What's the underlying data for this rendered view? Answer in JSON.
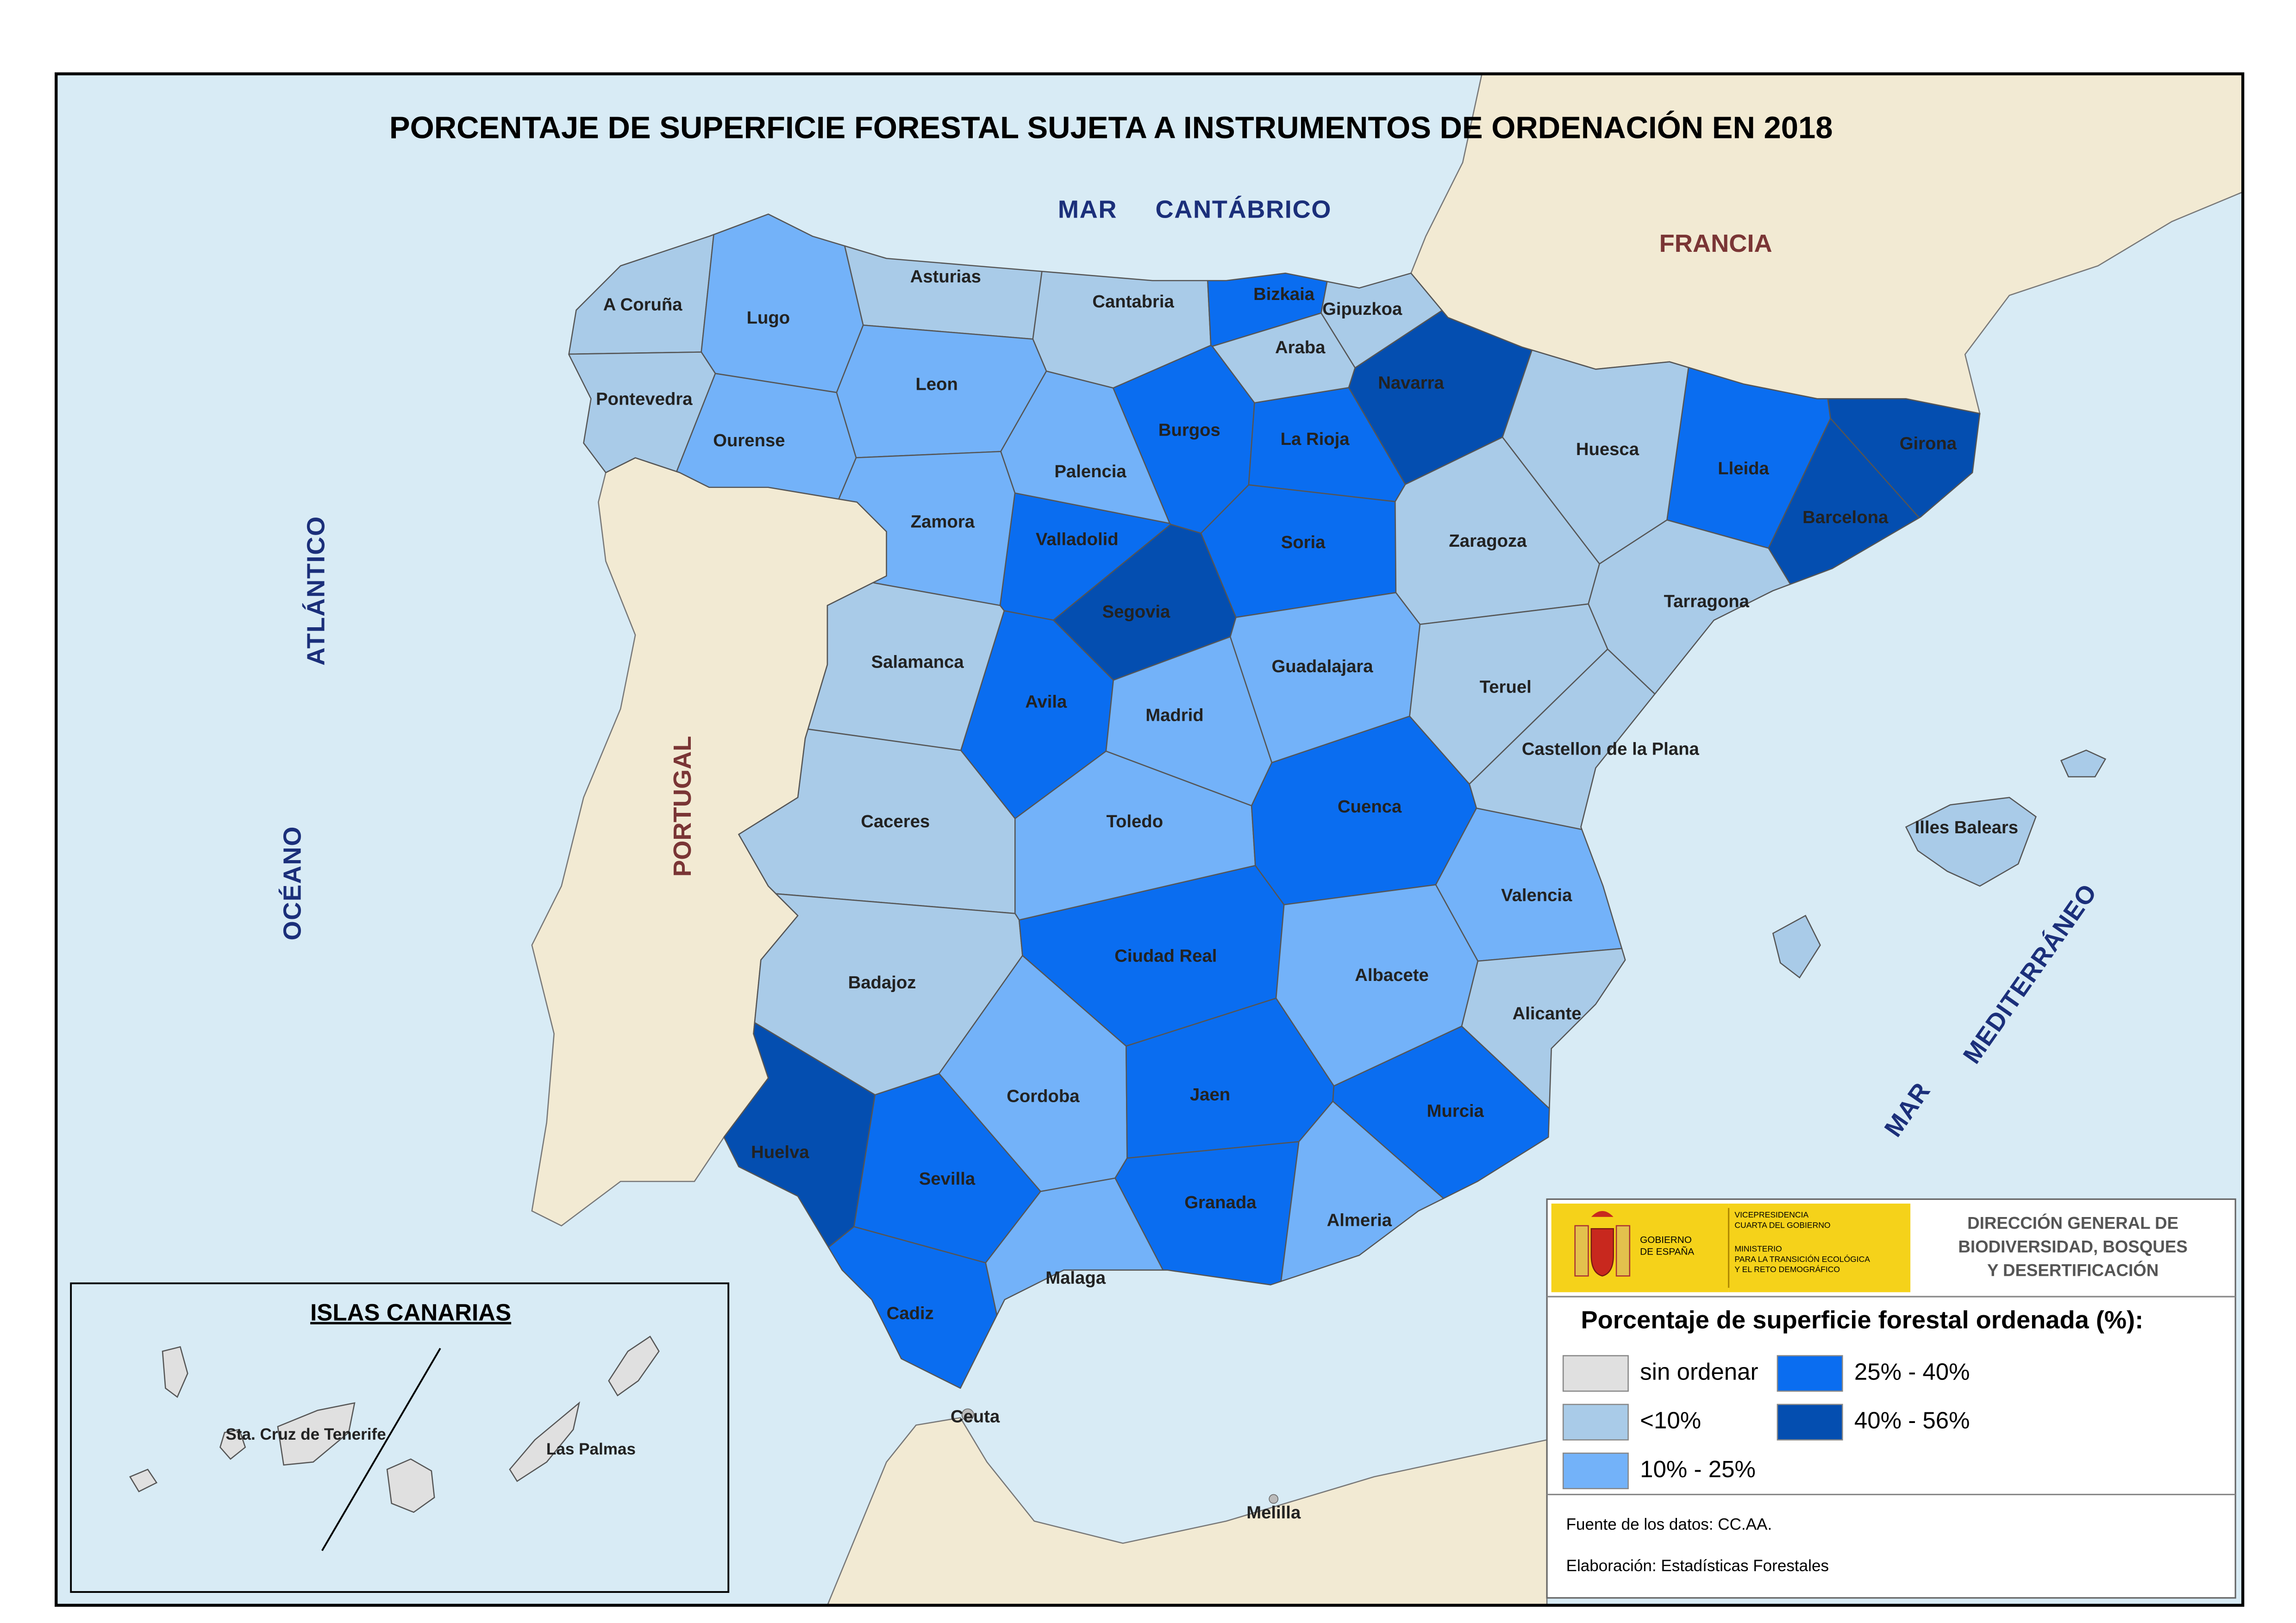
{
  "title": "PORCENTAJE DE SUPERFICIE FORESTAL SUJETA A INSTRUMENTOS DE ORDENACIÓN EN 2018",
  "labels": {
    "mar": "MAR",
    "cantabrico": "CANTÁBRICO",
    "francia": "FRANCIA",
    "portugal": "PORTUGAL",
    "oceano": "OCÉANO",
    "atlantico": "ATLÁNTICO",
    "mar_med": "MAR",
    "mediterraneo": "MEDITERRÁNEO",
    "ceuta": "Ceuta",
    "melilla": "Melilla"
  },
  "legend": {
    "title": "Porcentaje de superficie forestal ordenada (%):",
    "classes": [
      {
        "label": "sin ordenar",
        "color": "#e0e0e0"
      },
      {
        "label": "<10%",
        "color": "#a9cbe8"
      },
      {
        "label": "10% - 25%",
        "color": "#73b2f9"
      },
      {
        "label": "25% - 40%",
        "color": "#0a6df0"
      },
      {
        "label": "40% - 56%",
        "color": "#044eb0"
      }
    ]
  },
  "provinces": [
    {
      "name": "A Coruña",
      "class": 1
    },
    {
      "name": "Lugo",
      "class": 2
    },
    {
      "name": "Asturias",
      "class": 1
    },
    {
      "name": "Cantabria",
      "class": 1
    },
    {
      "name": "Bizkaia",
      "class": 3
    },
    {
      "name": "Gipuzkoa",
      "class": 1
    },
    {
      "name": "Araba",
      "class": 1
    },
    {
      "name": "Navarra",
      "class": 4
    },
    {
      "name": "Pontevedra",
      "class": 1
    },
    {
      "name": "Ourense",
      "class": 2
    },
    {
      "name": "Leon",
      "class": 2
    },
    {
      "name": "Palencia",
      "class": 2
    },
    {
      "name": "Burgos",
      "class": 3
    },
    {
      "name": "La Rioja",
      "class": 3
    },
    {
      "name": "Huesca",
      "class": 1
    },
    {
      "name": "Lleida",
      "class": 3
    },
    {
      "name": "Girona",
      "class": 4
    },
    {
      "name": "Barcelona",
      "class": 4
    },
    {
      "name": "Zamora",
      "class": 2
    },
    {
      "name": "Valladolid",
      "class": 3
    },
    {
      "name": "Soria",
      "class": 3
    },
    {
      "name": "Zaragoza",
      "class": 1
    },
    {
      "name": "Tarragona",
      "class": 1
    },
    {
      "name": "Segovia",
      "class": 4
    },
    {
      "name": "Salamanca",
      "class": 1
    },
    {
      "name": "Avila",
      "class": 3
    },
    {
      "name": "Madrid",
      "class": 2
    },
    {
      "name": "Guadalajara",
      "class": 2
    },
    {
      "name": "Teruel",
      "class": 1
    },
    {
      "name": "Castellon de la Plana",
      "class": 1
    },
    {
      "name": "Caceres",
      "class": 1
    },
    {
      "name": "Toledo",
      "class": 2
    },
    {
      "name": "Cuenca",
      "class": 3
    },
    {
      "name": "Valencia",
      "class": 2
    },
    {
      "name": "Badajoz",
      "class": 1
    },
    {
      "name": "Ciudad Real",
      "class": 3
    },
    {
      "name": "Albacete",
      "class": 2
    },
    {
      "name": "Alicante",
      "class": 1
    },
    {
      "name": "Cordoba",
      "class": 2
    },
    {
      "name": "Jaen",
      "class": 3
    },
    {
      "name": "Murcia",
      "class": 3
    },
    {
      "name": "Huelva",
      "class": 4
    },
    {
      "name": "Sevilla",
      "class": 3
    },
    {
      "name": "Granada",
      "class": 3
    },
    {
      "name": "Almeria",
      "class": 2
    },
    {
      "name": "Malaga",
      "class": 2
    },
    {
      "name": "Cadiz",
      "class": 3
    },
    {
      "name": "Illes Balears",
      "class": 1
    }
  ],
  "canarias": {
    "title": "ISLAS CANARIAS",
    "provinces": [
      {
        "name": "Sta. Cruz de Tenerife",
        "class": 0
      },
      {
        "name": "Las Palmas",
        "class": 0
      }
    ]
  },
  "logo": {
    "gobierno": [
      "GOBIERNO",
      "DE ESPAÑA"
    ],
    "vice": [
      "VICEPRESIDENCIA",
      "CUARTA DEL GOBIERNO"
    ],
    "ministerio": [
      "MINISTERIO",
      "PARA LA TRANSICIÓN ECOLÓGICA",
      "Y EL RETO DEMOGRÁFICO"
    ],
    "direccion": [
      "DIRECCIÓN GENERAL DE",
      "BIODIVERSIDAD, BOSQUES",
      "Y DESERTIFICACIÓN"
    ]
  },
  "source": [
    "Fuente de los datos: CC.AA.",
    "Elaboración: Estadísticas Forestales"
  ]
}
